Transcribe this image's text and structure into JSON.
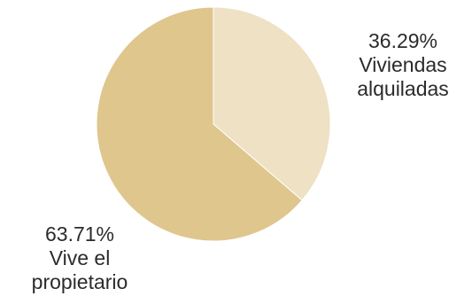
{
  "chart_data": {
    "type": "pie",
    "slices": [
      {
        "value": 36.29,
        "value_label": "36.29%",
        "label_lines": [
          "Viviendas",
          "alquiladas"
        ],
        "color": "#eee1c4"
      },
      {
        "value": 63.71,
        "value_label": "63.71%",
        "label_lines": [
          "Vive el",
          "propietario"
        ],
        "color": "#dfc68d"
      }
    ],
    "title": "",
    "legend": "none",
    "start_angle": "12 o'clock",
    "direction": "clockwise"
  }
}
